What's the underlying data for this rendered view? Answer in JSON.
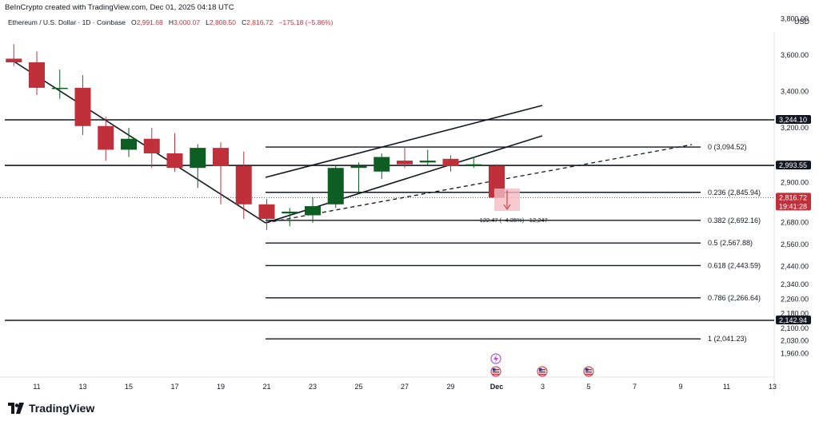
{
  "header": {
    "credit": "BeInCrypto created with TradingView.com, Dec 01, 2025 04:18 UTC"
  },
  "symbol": {
    "name": "Ethereum / U.S. Dollar · 1D · Coinbase",
    "open_label": "O",
    "open": "2,991.68",
    "high_label": "H",
    "high": "3,000.07",
    "low_label": "L",
    "low": "2,808.50",
    "close_label": "C",
    "close": "2,816.72",
    "change": "−175.18 (−5.86%)"
  },
  "currency": "USD",
  "brand": {
    "name": "TradingView"
  },
  "colors": {
    "up": "#0e5e23",
    "down": "#c0303b",
    "line": "#131722",
    "grid_axis": "#e0e3eb",
    "tag_dark": "#131722",
    "tag_red": "#c0303b"
  },
  "chart_data": {
    "type": "candlestick",
    "x_axis": {
      "ticks": [
        "11",
        "13",
        "15",
        "17",
        "19",
        "21",
        "23",
        "25",
        "27",
        "29",
        "Dec",
        "3",
        "5",
        "7",
        "9",
        "11",
        "13"
      ],
      "range_days": [
        10,
        44
      ]
    },
    "y_axis": {
      "range": [
        1880,
        3950
      ],
      "ticks": [
        "3,800.00",
        "3,600.00",
        "3,400.00",
        "3,200.00",
        "2,900.00",
        "2,680.00",
        "2,560.00",
        "2,440.00",
        "2,340.00",
        "2,260.00",
        "2,180.00",
        "2,100.00",
        "2,030.00",
        "1,960.00"
      ],
      "tick_values": [
        3800,
        3600,
        3400,
        3200,
        2900,
        2680,
        2560,
        2440,
        2340,
        2260,
        2180,
        2100,
        2030,
        1960
      ]
    },
    "candles": [
      {
        "day": 10,
        "o": 3580,
        "h": 3660,
        "l": 3540,
        "c": 3560
      },
      {
        "day": 11,
        "o": 3560,
        "h": 3620,
        "l": 3380,
        "c": 3420
      },
      {
        "day": 12,
        "o": 3420,
        "h": 3520,
        "l": 3360,
        "c": 3420
      },
      {
        "day": 13,
        "o": 3420,
        "h": 3490,
        "l": 3160,
        "c": 3210
      },
      {
        "day": 14,
        "o": 3210,
        "h": 3260,
        "l": 3020,
        "c": 3080
      },
      {
        "day": 15,
        "o": 3080,
        "h": 3200,
        "l": 3040,
        "c": 3140
      },
      {
        "day": 16,
        "o": 3140,
        "h": 3200,
        "l": 2980,
        "c": 3060
      },
      {
        "day": 17,
        "o": 3060,
        "h": 3170,
        "l": 2960,
        "c": 2980
      },
      {
        "day": 18,
        "o": 2980,
        "h": 3110,
        "l": 2870,
        "c": 3090
      },
      {
        "day": 19,
        "o": 3090,
        "h": 3120,
        "l": 2780,
        "c": 2990
      },
      {
        "day": 20,
        "o": 2990,
        "h": 3070,
        "l": 2700,
        "c": 2780
      },
      {
        "day": 21,
        "o": 2780,
        "h": 2810,
        "l": 2640,
        "c": 2700
      },
      {
        "day": 22,
        "o": 2730,
        "h": 2760,
        "l": 2660,
        "c": 2740
      },
      {
        "day": 23,
        "o": 2720,
        "h": 2820,
        "l": 2680,
        "c": 2770
      },
      {
        "day": 24,
        "o": 2780,
        "h": 2990,
        "l": 2760,
        "c": 2980
      },
      {
        "day": 25,
        "o": 2980,
        "h": 3010,
        "l": 2840,
        "c": 2990
      },
      {
        "day": 26,
        "o": 2960,
        "h": 3060,
        "l": 2920,
        "c": 3040
      },
      {
        "day": 27,
        "o": 3020,
        "h": 3090,
        "l": 2980,
        "c": 3000
      },
      {
        "day": 28,
        "o": 3010,
        "h": 3080,
        "l": 2990,
        "c": 3020
      },
      {
        "day": 29,
        "o": 3030,
        "h": 3050,
        "l": 2960,
        "c": 2990
      },
      {
        "day": 30,
        "o": 2995,
        "h": 3040,
        "l": 2980,
        "c": 3000
      },
      {
        "day": 31,
        "o": 2991.68,
        "h": 3000.07,
        "l": 2808.5,
        "c": 2816.72
      }
    ],
    "horizontal_levels": [
      3244.1,
      2993.55,
      2142.94
    ],
    "fibonacci": [
      {
        "label": "0 (3,094.52)",
        "value": 3094.52
      },
      {
        "label": "0.236 (2,845.94)",
        "value": 2845.94
      },
      {
        "label": "0.382 (2,692.16)",
        "value": 2692.16
      },
      {
        "label": "0.5 (2,567.88)",
        "value": 2567.88
      },
      {
        "label": "0.618 (2,443.59)",
        "value": 2443.59
      },
      {
        "label": "0.786 (2,266.64)",
        "value": 2266.64
      },
      {
        "label": "1 (2,041.23)",
        "value": 2041.23
      }
    ],
    "price_tags": [
      {
        "value": 3244.1,
        "label": "3,244.10",
        "style": "dark"
      },
      {
        "value": 2993.55,
        "label": "2,993.55",
        "style": "dark"
      },
      {
        "value": 2816.72,
        "label": "2,816.72",
        "sub": "19:41:28",
        "style": "red"
      },
      {
        "value": 2142.94,
        "label": "2,142.94",
        "style": "dark"
      }
    ],
    "measure_text": "−122.47 (−4.35%) −12,247"
  }
}
